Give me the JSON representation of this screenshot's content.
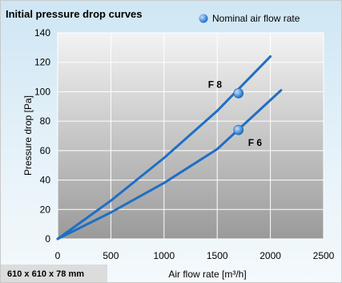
{
  "chart_data": {
    "type": "line",
    "title": "Initial pressure drop curves",
    "xlabel": "Air flow rate [m³/h]",
    "ylabel": "Pressure drop [Pa]",
    "xlim": [
      0,
      2500
    ],
    "ylim": [
      0,
      140
    ],
    "x_ticks": [
      "0",
      "500",
      "1000",
      "1500",
      "2000",
      "2500"
    ],
    "y_ticks": [
      "0",
      "20",
      "40",
      "60",
      "80",
      "100",
      "120",
      "140"
    ],
    "grid": true,
    "legend": {
      "label": "Nominal air flow rate",
      "placement": "top-right"
    },
    "colors": {
      "line": "#1f6fc4",
      "marker": "#3b8be0",
      "plot_bg_top": "#f2f2f2",
      "plot_bg_bottom": "#9c9c9c",
      "frame_bg": "#d8ecf7"
    },
    "series": [
      {
        "name": "F 8",
        "x": [
          0,
          500,
          1000,
          1500,
          2000
        ],
        "y": [
          0,
          26,
          55,
          87,
          124
        ],
        "nominal": {
          "x": 1700,
          "y": 99
        }
      },
      {
        "name": "F 6",
        "x": [
          0,
          500,
          1000,
          1500,
          2100
        ],
        "y": [
          0,
          18,
          38,
          61,
          101
        ],
        "nominal": {
          "x": 1700,
          "y": 74
        }
      }
    ]
  },
  "footer": {
    "dimensions": "610 x 610 x 78 mm"
  }
}
